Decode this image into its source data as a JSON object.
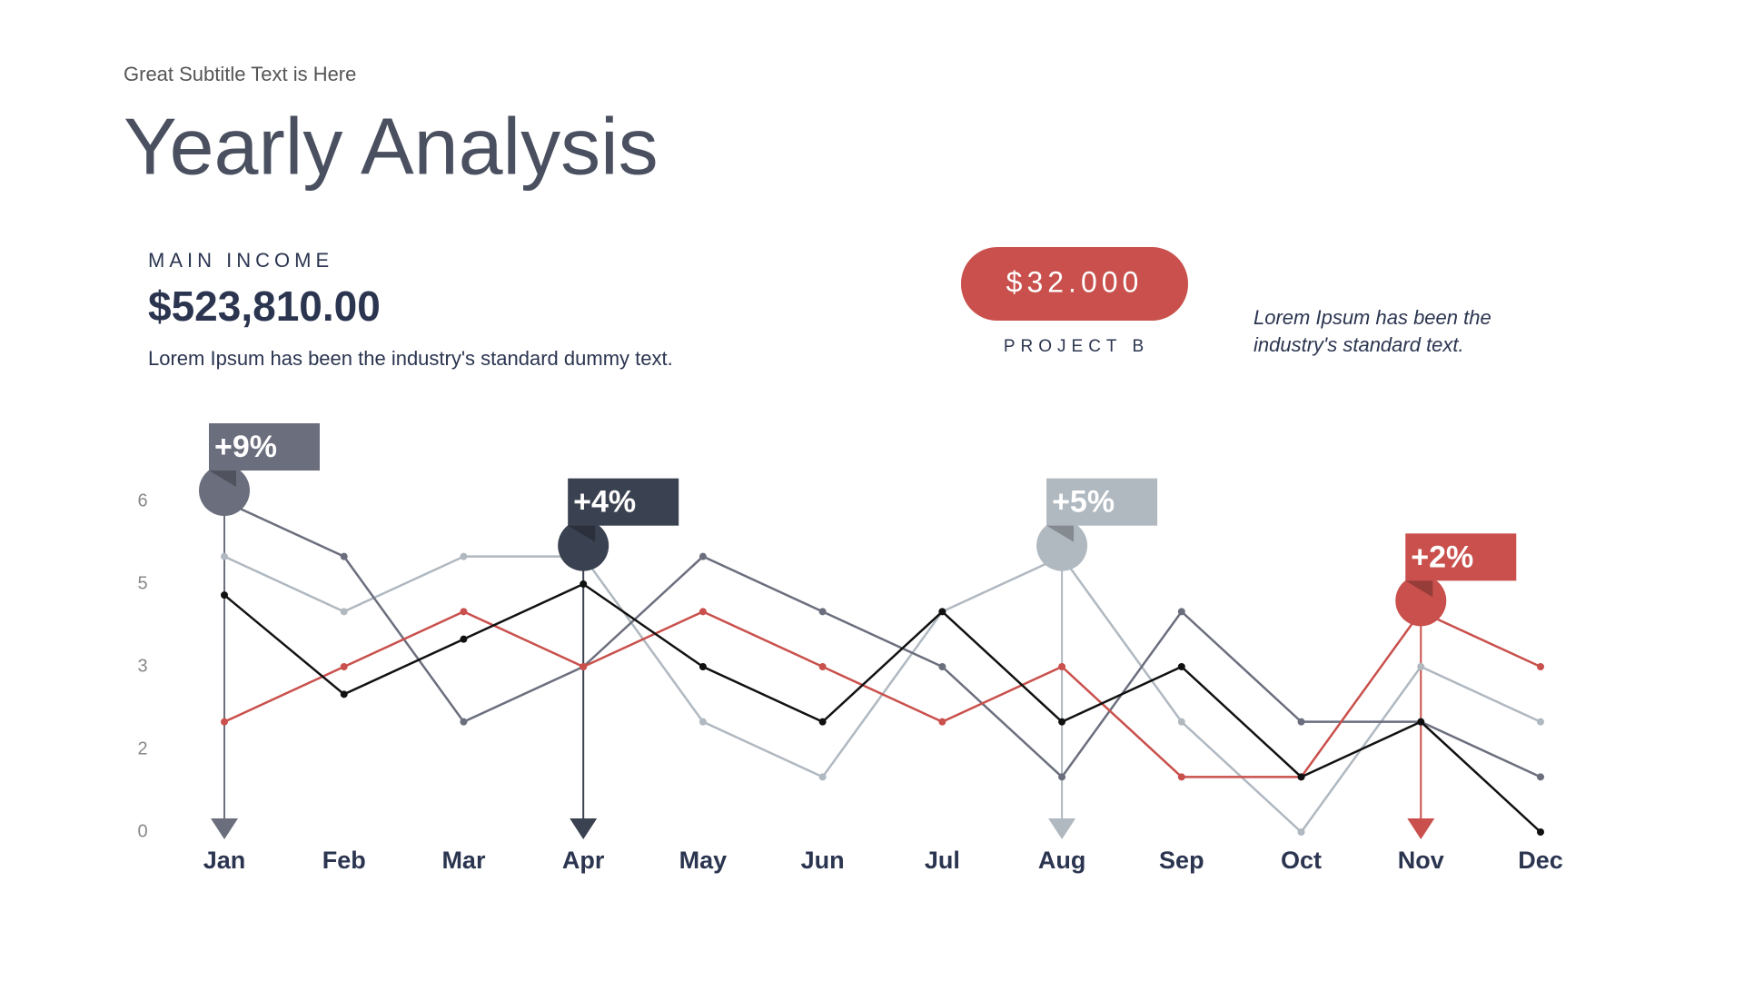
{
  "chart_data": {
    "type": "line",
    "subtitle": "Great Subtitle Text is Here",
    "title": "Yearly Analysis",
    "kpi": {
      "label": "MAIN INCOME",
      "value": "$523,810.00",
      "description": "Lorem Ipsum has been the industry's standard dummy text."
    },
    "badge": {
      "value": "$32.000",
      "label": "PROJECT B",
      "color": "#c9504c"
    },
    "note": [
      "Lorem Ipsum has been the",
      "industry's standard text."
    ],
    "categories": [
      "Jan",
      "Feb",
      "Mar",
      "Apr",
      "May",
      "Jun",
      "Jul",
      "Aug",
      "Sep",
      "Oct",
      "Nov",
      "Dec"
    ],
    "ylim": [
      0,
      6
    ],
    "yticks": [
      0,
      {
        "value": 1.5,
        "label": "2"
      },
      3,
      {
        "value": 4.5,
        "label": "5"
      },
      6
    ],
    "grid": false,
    "series": [
      {
        "color": "#b0b8c0",
        "values": [
          5,
          4,
          5,
          5,
          2,
          1,
          4,
          5,
          2,
          0,
          3,
          2
        ]
      },
      {
        "color": "#6b6e7d",
        "values": [
          6,
          5,
          2,
          3,
          5,
          4,
          3,
          1,
          4,
          2,
          2,
          1
        ]
      },
      {
        "color": "#c9504c",
        "values": [
          2,
          3,
          4,
          3,
          4,
          3,
          2,
          3,
          1,
          1,
          4,
          3
        ]
      },
      {
        "color": "#111111",
        "values": [
          4.3,
          2.5,
          3.5,
          4.5,
          3,
          2,
          4,
          2,
          3,
          1,
          2,
          0
        ]
      }
    ],
    "annotations": [
      {
        "text": "+9%",
        "category": "Jan",
        "color": "#6b6e7d"
      },
      {
        "text": "+4%",
        "category": "Apr",
        "color": "#3a4150"
      },
      {
        "text": "+5%",
        "category": "Aug",
        "color": "#b0b8c0"
      },
      {
        "text": "+2%",
        "category": "Nov",
        "color": "#c9504c"
      }
    ]
  }
}
